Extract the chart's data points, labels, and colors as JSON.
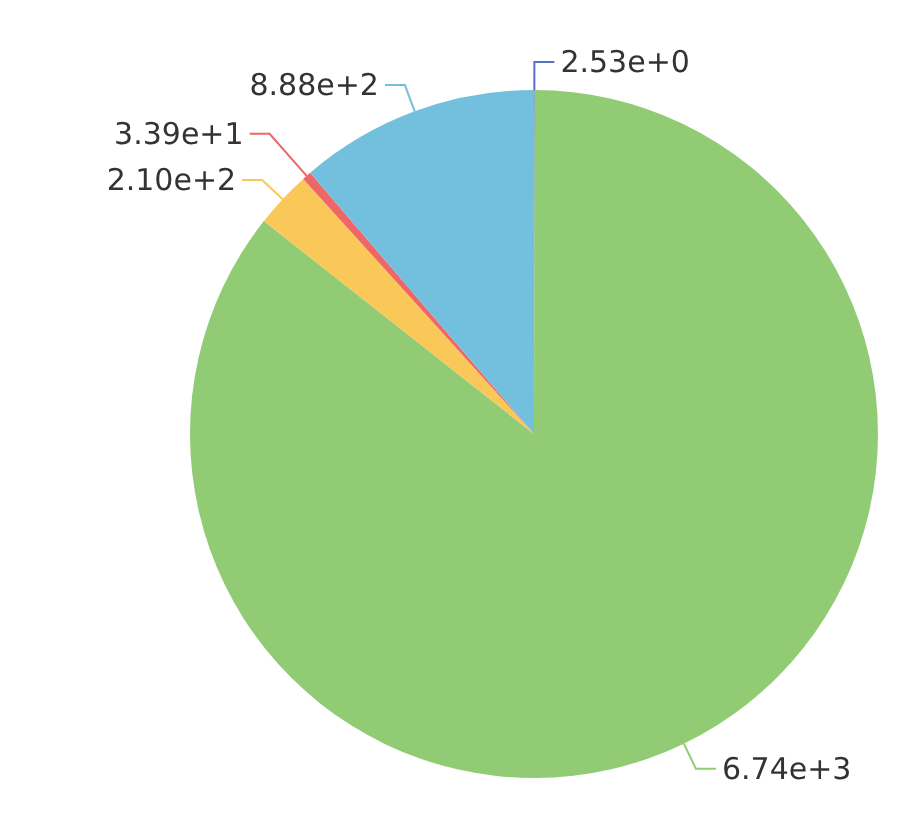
{
  "chart_data": {
    "type": "pie",
    "categories": [
      null,
      null,
      null,
      null,
      null
    ],
    "values": [
      2.53,
      6740,
      210,
      33.9,
      888
    ],
    "value_labels": [
      "2.53e+0",
      "6.74e+3",
      "2.10e+2",
      "3.39e+1",
      "8.88e+2"
    ],
    "colors": [
      "#5470c6",
      "#91cc75",
      "#fac858",
      "#ee6666",
      "#73c0de"
    ],
    "legend": false
  }
}
